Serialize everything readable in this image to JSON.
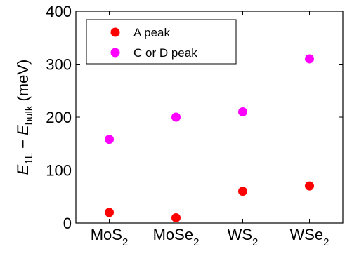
{
  "chart_data": {
    "type": "scatter",
    "categories": [
      {
        "base": "MoS",
        "sub": "2"
      },
      {
        "base": "MoSe",
        "sub": "2"
      },
      {
        "base": "WS",
        "sub": "2"
      },
      {
        "base": "WSe",
        "sub": "2"
      }
    ],
    "ylabel": {
      "E1": "E",
      "E1_sub": "1L",
      "minus": " − ",
      "E2": "E",
      "E2_sub": "bulk",
      "unit": " (meV)"
    },
    "ylim": [
      0,
      400
    ],
    "yticks": [
      "0",
      "100",
      "200",
      "300",
      "400"
    ],
    "grid": false,
    "legend_position": "top-left",
    "series": [
      {
        "name": "A peak",
        "color": "#ff0000",
        "values": [
          20,
          10,
          60,
          70
        ]
      },
      {
        "name": "C or D peak",
        "color": "#ff00ff",
        "values": [
          158,
          200,
          210,
          310
        ]
      }
    ]
  }
}
